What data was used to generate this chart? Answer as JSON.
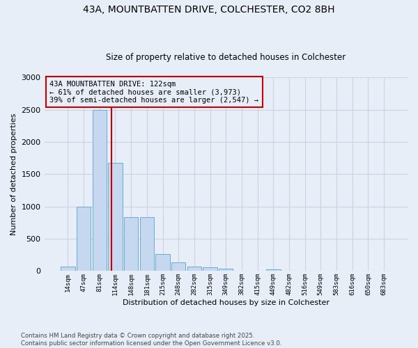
{
  "title_line1": "43A, MOUNTBATTEN DRIVE, COLCHESTER, CO2 8BH",
  "title_line2": "Size of property relative to detached houses in Colchester",
  "xlabel": "Distribution of detached houses by size in Colchester",
  "ylabel": "Number of detached properties",
  "annotation_title": "43A MOUNTBATTEN DRIVE: 122sqm",
  "annotation_line2": "← 61% of detached houses are smaller (3,973)",
  "annotation_line3": "39% of semi-detached houses are larger (2,547) →",
  "footer_line1": "Contains HM Land Registry data © Crown copyright and database right 2025.",
  "footer_line2": "Contains public sector information licensed under the Open Government Licence v3.0.",
  "categories": [
    "14sqm",
    "47sqm",
    "81sqm",
    "114sqm",
    "148sqm",
    "181sqm",
    "215sqm",
    "248sqm",
    "282sqm",
    "315sqm",
    "349sqm",
    "382sqm",
    "415sqm",
    "449sqm",
    "482sqm",
    "516sqm",
    "549sqm",
    "583sqm",
    "616sqm",
    "650sqm",
    "683sqm"
  ],
  "bar_values": [
    70,
    1000,
    2500,
    1680,
    840,
    840,
    260,
    130,
    70,
    55,
    35,
    0,
    0,
    30,
    0,
    0,
    0,
    0,
    0,
    0,
    0
  ],
  "bar_color": "#c5d8f0",
  "bar_edge_color": "#6aabd2",
  "grid_color": "#c8d4e4",
  "background_color": "#e8eef8",
  "vline_color": "#cc0000",
  "vline_xindex": 3,
  "annotation_box_edge_color": "#cc0000",
  "ylim_max": 3000,
  "yticks": [
    0,
    500,
    1000,
    1500,
    2000,
    2500,
    3000
  ]
}
